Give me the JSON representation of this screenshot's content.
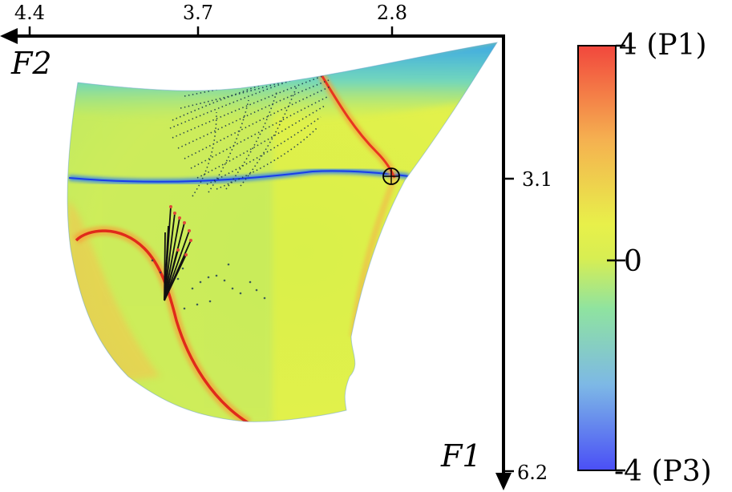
{
  "axes": {
    "top": {
      "name": "F2",
      "ticks": [
        "4.4",
        "3.7",
        "2.8"
      ]
    },
    "right": {
      "name": "F1",
      "ticks": [
        "3.1",
        "6.2"
      ]
    }
  },
  "colorbar": {
    "max_label": "4 (P1)",
    "mid_label": "0",
    "min_label": "-4 (P3)",
    "colors": [
      "#f2473d",
      "#f5b050",
      "#e8f04a",
      "#cbe85a",
      "#72e3b2",
      "#7db8e6",
      "#4a4ff6"
    ]
  }
}
